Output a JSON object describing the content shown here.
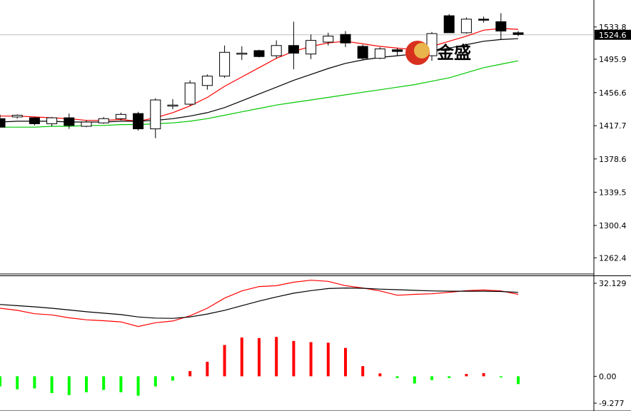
{
  "watermark": {
    "text": "金盛"
  },
  "colors": {
    "bull_body": "#ffffff",
    "bear_body": "#000000",
    "ma_fast": "#ff0000",
    "ma_mid": "#000000",
    "ma_slow": "#00c800",
    "macd_pos": "#ff0000",
    "macd_neg": "#00ff00",
    "dif": "#ff0000",
    "dea": "#000000",
    "current_line": "#c0c0c0"
  },
  "chart_data": [
    {
      "type": "candlestick",
      "title": "",
      "xlabel": "",
      "ylabel": "",
      "ylim": [
        1245,
        1563
      ],
      "yticks": [
        "1533.8",
        "1495.9",
        "1456.6",
        "1417.7",
        "1378.6",
        "1339.5",
        "1300.4",
        "1262.4"
      ],
      "current_price": "1524.6",
      "grid": false,
      "candles": [
        {
          "o": 1426,
          "h": 1431,
          "l": 1416,
          "c": 1416
        },
        {
          "o": 1428,
          "h": 1431,
          "l": 1426,
          "c": 1430
        },
        {
          "o": 1427,
          "h": 1428,
          "l": 1418,
          "c": 1420
        },
        {
          "o": 1420,
          "h": 1428,
          "l": 1417,
          "c": 1427
        },
        {
          "o": 1427,
          "h": 1432,
          "l": 1414,
          "c": 1418
        },
        {
          "o": 1417,
          "h": 1424,
          "l": 1416,
          "c": 1422
        },
        {
          "o": 1421,
          "h": 1428,
          "l": 1420,
          "c": 1426
        },
        {
          "o": 1426,
          "h": 1433,
          "l": 1424,
          "c": 1431
        },
        {
          "o": 1432,
          "h": 1434,
          "l": 1412,
          "c": 1414
        },
        {
          "o": 1414,
          "h": 1450,
          "l": 1403,
          "c": 1448
        },
        {
          "o": 1442,
          "h": 1449,
          "l": 1437,
          "c": 1442
        },
        {
          "o": 1443,
          "h": 1471,
          "l": 1441,
          "c": 1468
        },
        {
          "o": 1465,
          "h": 1478,
          "l": 1460,
          "c": 1476
        },
        {
          "o": 1476,
          "h": 1512,
          "l": 1474,
          "c": 1504
        },
        {
          "o": 1502,
          "h": 1511,
          "l": 1495,
          "c": 1503
        },
        {
          "o": 1506,
          "h": 1507,
          "l": 1498,
          "c": 1499
        },
        {
          "o": 1500,
          "h": 1518,
          "l": 1497,
          "c": 1512
        },
        {
          "o": 1512,
          "h": 1540,
          "l": 1484,
          "c": 1503
        },
        {
          "o": 1502,
          "h": 1525,
          "l": 1496,
          "c": 1518
        },
        {
          "o": 1516,
          "h": 1527,
          "l": 1512,
          "c": 1523
        },
        {
          "o": 1525,
          "h": 1529,
          "l": 1510,
          "c": 1515
        },
        {
          "o": 1511,
          "h": 1513,
          "l": 1495,
          "c": 1497
        },
        {
          "o": 1497,
          "h": 1510,
          "l": 1496,
          "c": 1508
        },
        {
          "o": 1507,
          "h": 1509,
          "l": 1500,
          "c": 1505
        },
        {
          "o": 1510,
          "h": 1513,
          "l": 1497,
          "c": 1500
        },
        {
          "o": 1500,
          "h": 1528,
          "l": 1494,
          "c": 1526
        },
        {
          "o": 1547,
          "h": 1549,
          "l": 1527,
          "c": 1527
        },
        {
          "o": 1527,
          "h": 1545,
          "l": 1526,
          "c": 1543
        },
        {
          "o": 1543,
          "h": 1546,
          "l": 1539,
          "c": 1542
        },
        {
          "o": 1540,
          "h": 1550,
          "l": 1519,
          "c": 1529
        },
        {
          "o": 1527,
          "h": 1529,
          "l": 1523,
          "c": 1525
        }
      ],
      "series": [
        {
          "values": [
            1429,
            1429,
            1428,
            1427,
            1426,
            1424,
            1424,
            1425,
            1423,
            1427,
            1433,
            1441,
            1451,
            1464,
            1475,
            1486,
            1497,
            1505,
            1511,
            1515,
            1517,
            1514,
            1511,
            1509,
            1507,
            1511,
            1517,
            1523,
            1530,
            1532,
            1531
          ]
        },
        {
          "values": [
            1422,
            1423,
            1423,
            1423,
            1422,
            1422,
            1422,
            1423,
            1423,
            1424,
            1426,
            1429,
            1433,
            1439,
            1447,
            1455,
            1463,
            1471,
            1478,
            1485,
            1491,
            1495,
            1498,
            1500,
            1502,
            1505,
            1509,
            1513,
            1517,
            1519,
            1520
          ]
        },
        {
          "values": [
            1416,
            1416,
            1416,
            1417,
            1417,
            1418,
            1418,
            1419,
            1419,
            1420,
            1421,
            1423,
            1426,
            1430,
            1434,
            1438,
            1442,
            1445,
            1448,
            1451,
            1454,
            1457,
            1460,
            1463,
            1466,
            1470,
            1474,
            1480,
            1486,
            1490,
            1494
          ]
        }
      ]
    },
    {
      "type": "macd",
      "title": "",
      "ylim": [
        -9.277,
        32.129
      ],
      "yticks": [
        "32.129",
        "0.00",
        "-9.277"
      ],
      "histogram": [
        -3.5,
        -4.5,
        -4.2,
        -5.8,
        -6.5,
        -5.5,
        -4.7,
        -5.5,
        -6.7,
        -3.5,
        -1.5,
        1.8,
        5.0,
        10.8,
        13.4,
        13.2,
        13.6,
        12.2,
        11.8,
        11.6,
        9.8,
        3.5,
        1.0,
        -0.6,
        -2.5,
        -1.3,
        -0.6,
        0.8,
        1.1,
        -0.4,
        -2.7
      ],
      "series": [
        {
          "values": [
            23.5,
            22.8,
            21.6,
            21.2,
            20.2,
            19.5,
            19.2,
            18.8,
            17.2,
            18.5,
            19.1,
            20.9,
            23.5,
            27.0,
            29.5,
            31.0,
            31.3,
            32.5,
            33.2,
            32.8,
            31.3,
            30.5,
            29.5,
            28.0,
            28.3,
            28.5,
            29.0,
            29.6,
            29.8,
            29.5,
            28.3
          ]
        },
        {
          "values": [
            24.8,
            24.4,
            24.0,
            23.5,
            22.9,
            22.3,
            21.8,
            21.3,
            20.5,
            20.1,
            20.0,
            20.5,
            21.5,
            22.8,
            24.4,
            26.0,
            27.4,
            28.7,
            29.6,
            30.3,
            30.5,
            30.4,
            30.1,
            29.9,
            29.7,
            29.5,
            29.4,
            29.4,
            29.4,
            29.3,
            29.0
          ]
        }
      ]
    }
  ]
}
